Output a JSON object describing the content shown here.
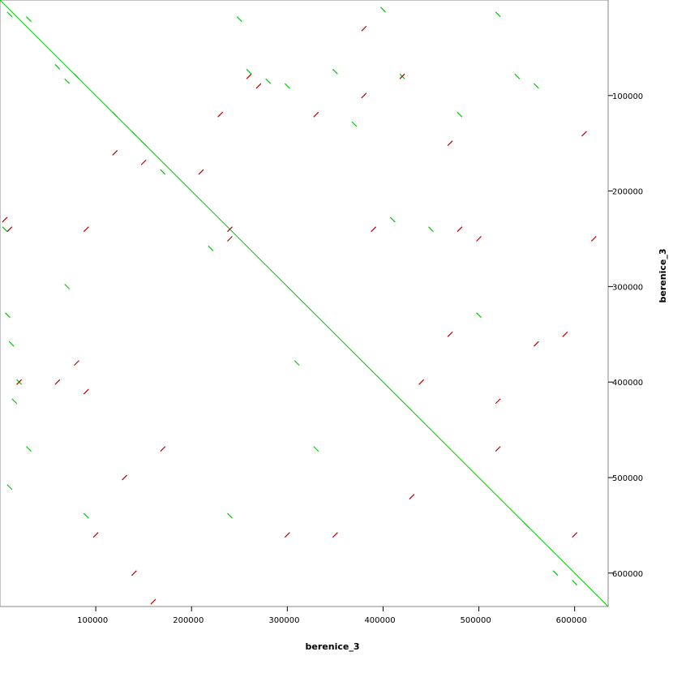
{
  "chart_data": {
    "type": "dotplot",
    "x_label": "berenice_3",
    "y_label": "berenice_3",
    "xlim": [
      0,
      635000
    ],
    "ylim": [
      0,
      635000
    ],
    "y_inverted": true,
    "xticks": [
      100000,
      200000,
      300000,
      400000,
      500000,
      600000
    ],
    "yticks": [
      100000,
      200000,
      300000,
      400000,
      500000,
      600000
    ],
    "series": [
      {
        "color": "#00c800",
        "mode": "line",
        "x": [
          0,
          635000
        ],
        "values": [
          0,
          635000
        ]
      },
      {
        "color": "#00c800",
        "mode": "forward",
        "x": [
          10000,
          30000,
          60000,
          70000,
          80000,
          120000,
          140000,
          150000,
          5000,
          8000,
          20000,
          250000,
          260000,
          280000,
          300000,
          350000,
          370000,
          400000,
          420000,
          450000,
          480000,
          520000,
          540000,
          560000,
          580000,
          600000,
          30000,
          90000,
          240000,
          330000,
          410000,
          500000,
          550000,
          10000,
          15000,
          12000,
          70000,
          170000,
          220000,
          310000
        ],
        "values": [
          15000,
          20000,
          70000,
          85000,
          80000,
          120000,
          140000,
          150000,
          240000,
          330000,
          400000,
          20000,
          75000,
          85000,
          90000,
          75000,
          130000,
          10000,
          80000,
          240000,
          120000,
          15000,
          80000,
          90000,
          600000,
          610000,
          470000,
          540000,
          540000,
          470000,
          230000,
          330000,
          550000,
          510000,
          420000,
          360000,
          300000,
          180000,
          260000,
          380000
        ]
      },
      {
        "color": "#b40000",
        "mode": "reverse",
        "x": [
          60000,
          80000,
          90000,
          120000,
          150000,
          230000,
          240000,
          260000,
          270000,
          330000,
          380000,
          390000,
          420000,
          440000,
          470000,
          500000,
          520000,
          560000,
          590000,
          610000,
          10000,
          20000,
          90000,
          130000,
          170000,
          210000,
          240000,
          300000,
          350000,
          380000,
          480000,
          520000,
          620000,
          5000,
          100000,
          140000,
          160000,
          430000,
          600000,
          470000
        ],
        "values": [
          400000,
          380000,
          240000,
          160000,
          170000,
          120000,
          240000,
          80000,
          90000,
          120000,
          100000,
          240000,
          80000,
          400000,
          150000,
          250000,
          420000,
          360000,
          350000,
          140000,
          240000,
          400000,
          410000,
          500000,
          470000,
          180000,
          250000,
          560000,
          560000,
          30000,
          240000,
          470000,
          250000,
          230000,
          560000,
          600000,
          630000,
          520000,
          560000,
          350000
        ]
      }
    ]
  }
}
